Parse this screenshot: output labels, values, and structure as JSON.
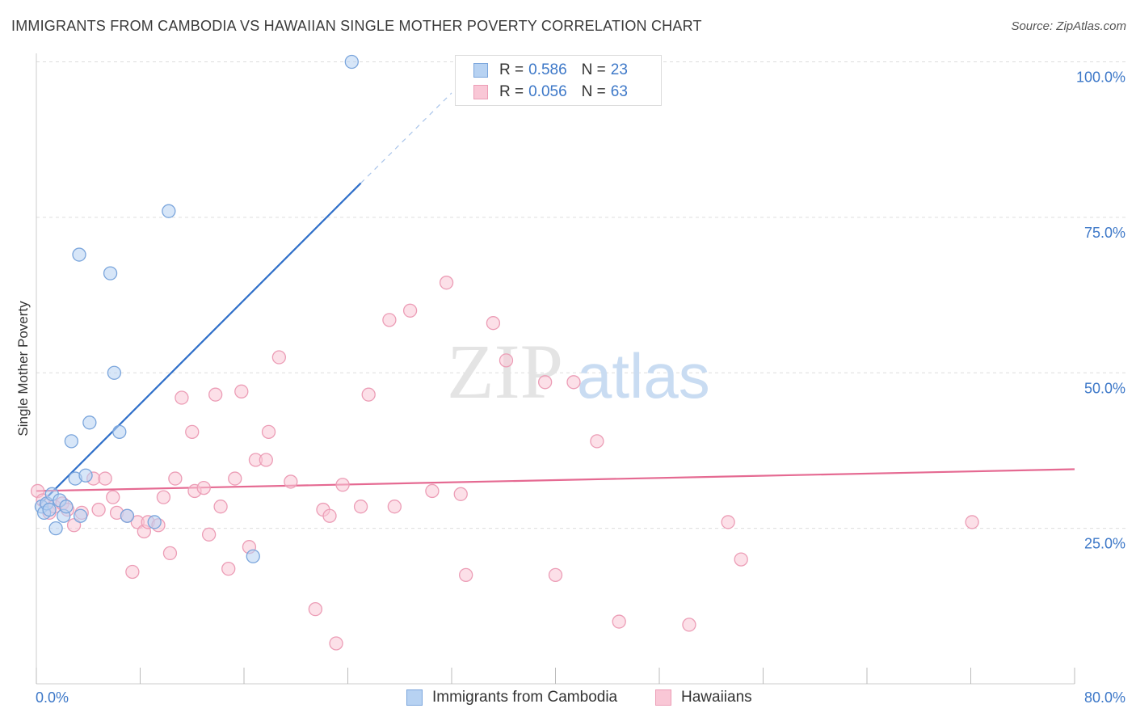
{
  "title": "IMMIGRANTS FROM CAMBODIA VS HAWAIIAN SINGLE MOTHER POVERTY CORRELATION CHART",
  "source": "Source: ZipAtlas.com",
  "watermark": {
    "zip": "ZIP",
    "atlas": "atlas"
  },
  "colors": {
    "blue_fill": "#b7d2f2",
    "blue_stroke": "#7aa5dc",
    "blue_line": "#2f6fc9",
    "pink_fill": "#f9c7d6",
    "pink_stroke": "#ec9db6",
    "pink_line": "#e56a92",
    "tick_text": "#3d78c8",
    "grid": "#dddddd"
  },
  "legend": {
    "rows": [
      {
        "r_label": "R =",
        "r_value": "0.586",
        "n_label": "N =",
        "n_value": "23"
      },
      {
        "r_label": "R =",
        "r_value": "0.056",
        "n_label": "N =",
        "n_value": "63"
      }
    ]
  },
  "bottom_legend": {
    "series_1": "Immigrants from Cambodia",
    "series_2": "Hawaiians"
  },
  "chart_data": {
    "type": "scatter",
    "title": "IMMIGRANTS FROM CAMBODIA VS HAWAIIAN SINGLE MOTHER POVERTY CORRELATION CHART",
    "xlabel": "",
    "ylabel": "Single Mother Poverty",
    "xlim": [
      0,
      80
    ],
    "ylim": [
      0,
      104
    ],
    "x_tick_labels": [
      {
        "value": 0,
        "label": "0.0%"
      },
      {
        "value": 80,
        "label": "80.0%"
      }
    ],
    "y_tick_labels": [
      {
        "value": 25,
        "label": "25.0%"
      },
      {
        "value": 50,
        "label": "50.0%"
      },
      {
        "value": 75,
        "label": "75.0%"
      },
      {
        "value": 100,
        "label": "100.0%"
      }
    ],
    "series": [
      {
        "name": "Immigrants from Cambodia",
        "r": 0.586,
        "n": 23,
        "trend": {
          "x0": 0.2,
          "y0": 28.7,
          "x1": 25.0,
          "y1": 80.5,
          "dash_to_x": 32.0,
          "dash_to_y": 95.0
        },
        "points": [
          [
            0.4,
            28.5
          ],
          [
            0.6,
            27.5
          ],
          [
            0.8,
            29.0
          ],
          [
            1.0,
            28.0
          ],
          [
            1.2,
            30.5
          ],
          [
            1.5,
            25.0
          ],
          [
            1.8,
            29.5
          ],
          [
            2.1,
            27.0
          ],
          [
            2.3,
            28.5
          ],
          [
            2.7,
            39.0
          ],
          [
            3.0,
            33.0
          ],
          [
            3.4,
            27.0
          ],
          [
            3.8,
            33.5
          ],
          [
            4.1,
            42.0
          ],
          [
            3.3,
            69.0
          ],
          [
            5.7,
            66.0
          ],
          [
            6.0,
            50.0
          ],
          [
            6.4,
            40.5
          ],
          [
            7.0,
            27.0
          ],
          [
            9.1,
            26.0
          ],
          [
            10.2,
            76.0
          ],
          [
            16.7,
            20.5
          ],
          [
            24.3,
            100.0
          ]
        ]
      },
      {
        "name": "Hawaiians",
        "r": 0.056,
        "n": 63,
        "trend": {
          "x0": 0,
          "y0": 31.0,
          "x1": 80,
          "y1": 34.5
        },
        "points": [
          [
            0.1,
            31.0
          ],
          [
            0.5,
            29.5
          ],
          [
            1.0,
            27.5
          ],
          [
            1.4,
            28.5
          ],
          [
            2.0,
            29.0
          ],
          [
            2.4,
            28.0
          ],
          [
            2.9,
            25.5
          ],
          [
            3.5,
            27.5
          ],
          [
            4.4,
            33.0
          ],
          [
            4.8,
            28.0
          ],
          [
            5.3,
            33.0
          ],
          [
            5.9,
            30.0
          ],
          [
            6.2,
            27.5
          ],
          [
            7.0,
            27.0
          ],
          [
            7.4,
            18.0
          ],
          [
            7.8,
            26.0
          ],
          [
            8.3,
            24.5
          ],
          [
            8.6,
            26.0
          ],
          [
            9.4,
            25.5
          ],
          [
            9.8,
            30.0
          ],
          [
            10.3,
            21.0
          ],
          [
            10.7,
            33.0
          ],
          [
            11.2,
            46.0
          ],
          [
            12.0,
            40.5
          ],
          [
            12.2,
            31.0
          ],
          [
            12.9,
            31.5
          ],
          [
            13.3,
            24.0
          ],
          [
            13.8,
            46.5
          ],
          [
            14.2,
            28.5
          ],
          [
            14.8,
            18.5
          ],
          [
            15.3,
            33.0
          ],
          [
            15.8,
            47.0
          ],
          [
            16.4,
            22.0
          ],
          [
            16.9,
            36.0
          ],
          [
            17.7,
            36.0
          ],
          [
            17.9,
            40.5
          ],
          [
            18.7,
            52.5
          ],
          [
            19.6,
            32.5
          ],
          [
            21.5,
            12.0
          ],
          [
            22.1,
            28.0
          ],
          [
            22.6,
            27.0
          ],
          [
            23.1,
            6.5
          ],
          [
            23.6,
            32.0
          ],
          [
            25.0,
            28.5
          ],
          [
            25.6,
            46.5
          ],
          [
            27.2,
            58.5
          ],
          [
            27.6,
            28.5
          ],
          [
            28.8,
            60.0
          ],
          [
            30.5,
            31.0
          ],
          [
            31.6,
            64.5
          ],
          [
            32.7,
            30.5
          ],
          [
            33.1,
            17.5
          ],
          [
            35.2,
            58.0
          ],
          [
            36.2,
            52.0
          ],
          [
            39.2,
            48.5
          ],
          [
            40.0,
            17.5
          ],
          [
            41.4,
            48.5
          ],
          [
            43.2,
            39.0
          ],
          [
            44.9,
            10.0
          ],
          [
            50.3,
            9.5
          ],
          [
            53.3,
            26.0
          ],
          [
            54.3,
            20.0
          ],
          [
            72.1,
            26.0
          ]
        ]
      }
    ]
  }
}
